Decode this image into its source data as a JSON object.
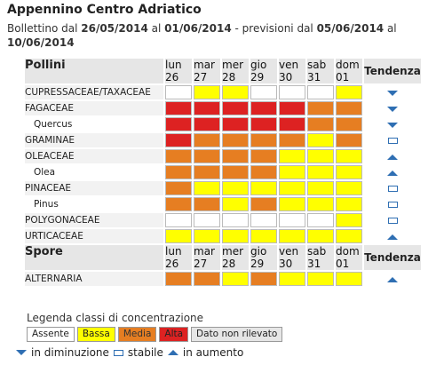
{
  "header": {
    "title": "Appennino Centro Adriatico",
    "bulletin_prefix": "Bollettino dal ",
    "bulletin_from": "26/05/2014",
    "bulletin_mid": " al ",
    "bulletin_to": "01/06/2014",
    "forecast_prefix": " - previsioni dal ",
    "forecast_from": "05/06/2014",
    "forecast_mid": " al ",
    "forecast_to": "10/06/2014"
  },
  "table": {
    "pollen_header": "Pollini",
    "spore_header": "Spore",
    "trend_header": "Tendenza",
    "days": [
      {
        "dow": "lun",
        "date": "26"
      },
      {
        "dow": "mar",
        "date": "27"
      },
      {
        "dow": "mer",
        "date": "28"
      },
      {
        "dow": "gio",
        "date": "29"
      },
      {
        "dow": "ven",
        "date": "30"
      },
      {
        "dow": "sab",
        "date": "31"
      },
      {
        "dow": "dom",
        "date": "01"
      }
    ],
    "pollen_rows": [
      {
        "name": "CUPRESSACEAE/TAXACEAE",
        "sub": false,
        "levels": [
          0,
          1,
          1,
          0,
          0,
          0,
          1
        ],
        "trend": "down"
      },
      {
        "name": "FAGACEAE",
        "sub": false,
        "levels": [
          3,
          3,
          3,
          3,
          3,
          2,
          2
        ],
        "trend": "down"
      },
      {
        "name": "Quercus",
        "sub": true,
        "levels": [
          3,
          3,
          3,
          3,
          3,
          2,
          2
        ],
        "trend": "down"
      },
      {
        "name": "GRAMINAE",
        "sub": false,
        "levels": [
          3,
          2,
          2,
          2,
          2,
          1,
          2
        ],
        "trend": "stable"
      },
      {
        "name": "OLEACEAE",
        "sub": false,
        "levels": [
          2,
          2,
          2,
          2,
          1,
          1,
          1
        ],
        "trend": "up"
      },
      {
        "name": "Olea",
        "sub": true,
        "levels": [
          2,
          2,
          2,
          2,
          1,
          1,
          1
        ],
        "trend": "up"
      },
      {
        "name": "PINACEAE",
        "sub": false,
        "levels": [
          2,
          1,
          1,
          1,
          1,
          1,
          1
        ],
        "trend": "stable"
      },
      {
        "name": "Pinus",
        "sub": true,
        "levels": [
          2,
          2,
          1,
          2,
          1,
          1,
          1
        ],
        "trend": "stable"
      },
      {
        "name": "POLYGONACEAE",
        "sub": false,
        "levels": [
          0,
          0,
          0,
          0,
          0,
          0,
          1
        ],
        "trend": "stable"
      },
      {
        "name": "URTICACEAE",
        "sub": false,
        "levels": [
          1,
          1,
          1,
          1,
          1,
          1,
          1
        ],
        "trend": "up"
      }
    ],
    "spore_rows": [
      {
        "name": "ALTERNARIA",
        "sub": false,
        "levels": [
          2,
          2,
          1,
          2,
          1,
          1,
          1
        ],
        "trend": "up"
      }
    ]
  },
  "legend": {
    "title": "Legenda classi di concentrazione",
    "classes": [
      {
        "label": "Assente",
        "color": "#ffffff",
        "text_color": "#222222"
      },
      {
        "label": "Bassa",
        "color": "#ffff00",
        "text_color": "#222222"
      },
      {
        "label": "Media",
        "color": "#e67e22",
        "text_color": "#333333"
      },
      {
        "label": "Alta",
        "color": "#dd2222",
        "text_color": "#222222"
      },
      {
        "label": "Dato non rilevato",
        "color": "#e6e6e6",
        "text_color": "#222222"
      }
    ],
    "trend_down": "in diminuzione",
    "trend_stable": "stabile",
    "trend_up": "in aumento"
  },
  "colors": {
    "level_0": "#ffffff",
    "level_1": "#ffff00",
    "level_2": "#e67e22",
    "level_3": "#dd2222",
    "trend_icon": "#2f6fb3"
  }
}
